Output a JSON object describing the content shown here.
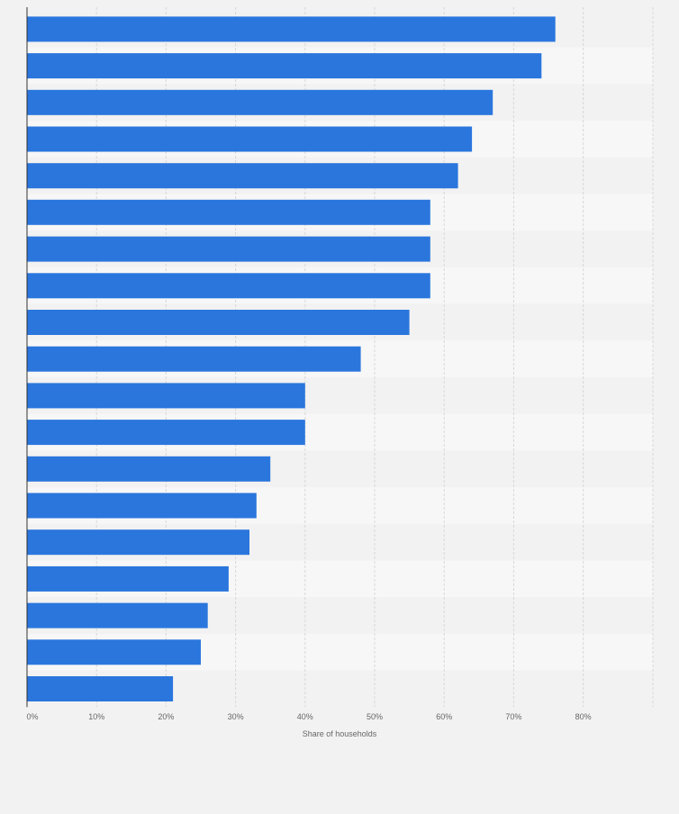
{
  "chart_data": {
    "type": "bar",
    "orientation": "horizontal",
    "title": "",
    "xlabel": "Share of households",
    "ylabel": "",
    "xlim": [
      0,
      90
    ],
    "x_ticks": [
      0,
      10,
      20,
      30,
      40,
      50,
      60,
      70,
      80
    ],
    "x_tick_labels": [
      "0%",
      "10%",
      "20%",
      "30%",
      "40%",
      "50%",
      "60%",
      "70%",
      "80%"
    ],
    "grid": "vertical dashed",
    "legend": "none",
    "categories": [
      "",
      "",
      "",
      "",
      "",
      "",
      "",
      "",
      "",
      "",
      "",
      "",
      "",
      "",
      "",
      "",
      "",
      "",
      ""
    ],
    "values": [
      76,
      74,
      67,
      64,
      62,
      58,
      58,
      58,
      55,
      48,
      40,
      40,
      35,
      33,
      32,
      29,
      26,
      25,
      21
    ],
    "colors": {
      "bar": "#2a76dd",
      "band_dark": "#f2f2f2",
      "band_light": "#f7f7f7",
      "grid": "#d8d8d8",
      "axis": "#333333",
      "tick_text": "#666666"
    }
  }
}
